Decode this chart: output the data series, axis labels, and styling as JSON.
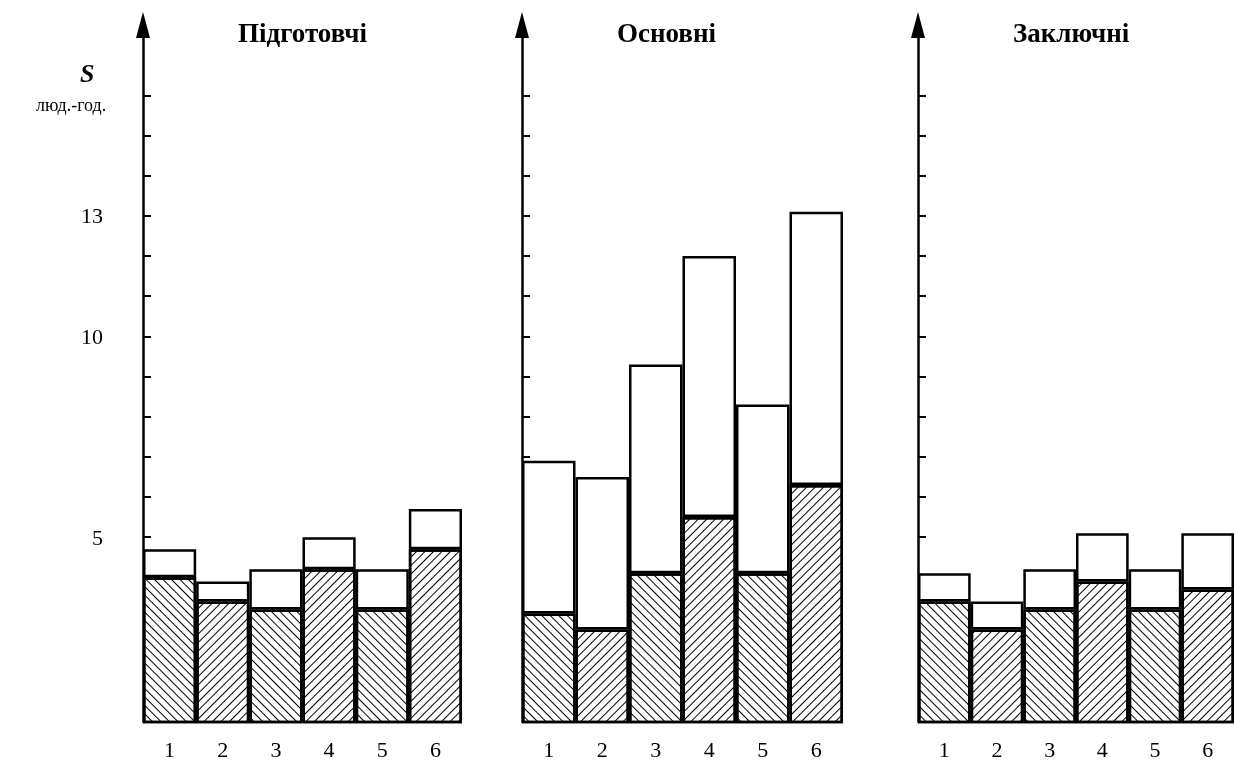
{
  "chart_data": [
    {
      "type": "bar",
      "title": "Підготовчі",
      "ylabel": "S",
      "annotations": [
        "люд.-год."
      ],
      "stacked": true,
      "categories": [
        "1",
        "2",
        "3",
        "4",
        "5",
        "6"
      ],
      "series": [
        {
          "color": "#ffffff",
          "values": [
            4.0,
            3.4,
            3.2,
            4.2,
            3.2,
            4.7
          ]
        },
        {
          "color": "#ffffff",
          "values": [
            0.7,
            0.5,
            1.0,
            0.8,
            1.0,
            1.0
          ]
        }
      ],
      "ylim": [
        0.4,
        17.5
      ],
      "yticks": [
        {
          "value": 2,
          "label": null
        },
        {
          "value": 3,
          "label": null
        },
        {
          "value": 4,
          "label": null
        },
        5,
        {
          "value": 6,
          "label": null
        },
        {
          "value": 7,
          "label": null
        },
        {
          "value": 8,
          "label": null
        },
        {
          "value": 9,
          "label": null
        },
        10,
        {
          "value": 11,
          "label": null
        },
        {
          "value": 12,
          "label": null
        },
        13,
        {
          "value": 14,
          "label": null
        },
        {
          "value": 15,
          "label": null
        },
        {
          "value": 16,
          "label": null
        }
      ],
      "grid": false
    },
    {
      "type": "bar",
      "title": "Основні",
      "stacked": true,
      "categories": [
        "1",
        "2",
        "3",
        "4",
        "5",
        "6"
      ],
      "series": [
        {
          "color": "#ffffff",
          "values": [
            3.1,
            2.7,
            4.1,
            5.5,
            4.1,
            6.3
          ]
        },
        {
          "color": "#ffffff",
          "values": [
            3.8,
            3.8,
            5.2,
            6.5,
            4.2,
            6.8
          ]
        }
      ],
      "ylim": [
        0.4,
        17.5
      ],
      "yticks": [
        {
          "value": 2,
          "label": null
        },
        {
          "value": 3,
          "label": null
        },
        {
          "value": 4,
          "label": null
        },
        {
          "value": 5,
          "label": null
        },
        {
          "value": 6,
          "label": null
        },
        {
          "value": 7,
          "label": null
        },
        {
          "value": 8,
          "label": null
        },
        {
          "value": 9,
          "label": null
        },
        {
          "value": 10,
          "label": null
        },
        {
          "value": 11,
          "label": null
        },
        {
          "value": 12,
          "label": null
        },
        {
          "value": 13,
          "label": null
        },
        {
          "value": 14,
          "label": null
        },
        {
          "value": 15,
          "label": null
        },
        {
          "value": 16,
          "label": null
        }
      ],
      "tick_labels": "x",
      "grid": false
    },
    {
      "type": "bar",
      "title": "Заключні",
      "stacked": true,
      "categories": [
        "1",
        "2",
        "3",
        "4",
        "5",
        "6"
      ],
      "series": [
        {
          "color": "#ffffff",
          "values": [
            3.4,
            2.7,
            3.2,
            3.9,
            3.2,
            3.7
          ]
        },
        {
          "color": "#ffffff",
          "values": [
            0.7,
            0.7,
            1.0,
            1.2,
            1.0,
            1.4
          ]
        }
      ],
      "ylim": [
        0.4,
        17.5
      ],
      "yticks": [
        {
          "value": 2,
          "label": null
        },
        {
          "value": 3,
          "label": null
        },
        {
          "value": 4,
          "label": null
        },
        {
          "value": 5,
          "label": null
        },
        {
          "value": 6,
          "label": null
        },
        {
          "value": 7,
          "label": null
        },
        {
          "value": 8,
          "label": null
        },
        {
          "value": 9,
          "label": null
        },
        {
          "value": 10,
          "label": null
        },
        {
          "value": 11,
          "label": null
        },
        {
          "value": 12,
          "label": null
        },
        {
          "value": 13,
          "label": null
        },
        {
          "value": 14,
          "label": null
        },
        {
          "value": 15,
          "label": null
        },
        {
          "value": 16,
          "label": null
        }
      ],
      "tick_labels": "x",
      "grid": false
    }
  ]
}
